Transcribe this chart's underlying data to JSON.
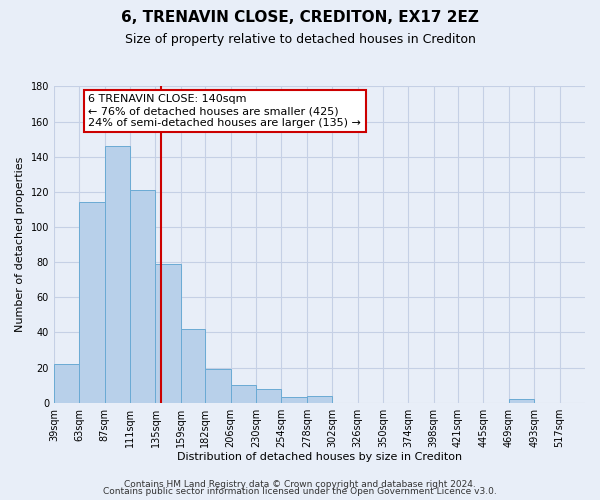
{
  "title": "6, TRENAVIN CLOSE, CREDITON, EX17 2EZ",
  "subtitle": "Size of property relative to detached houses in Crediton",
  "xlabel": "Distribution of detached houses by size in Crediton",
  "ylabel": "Number of detached properties",
  "bar_values": [
    22,
    114,
    146,
    121,
    79,
    42,
    19,
    10,
    8,
    3,
    4,
    0,
    0,
    0,
    0,
    0,
    0,
    0,
    2
  ],
  "bin_edges": [
    39,
    63,
    87,
    111,
    135,
    159,
    182,
    206,
    230,
    254,
    278,
    302,
    326,
    350,
    374,
    398,
    421,
    445,
    469,
    493
  ],
  "bin_labels": [
    "39sqm",
    "63sqm",
    "87sqm",
    "111sqm",
    "135sqm",
    "159sqm",
    "182sqm",
    "206sqm",
    "230sqm",
    "254sqm",
    "278sqm",
    "302sqm",
    "326sqm",
    "350sqm",
    "374sqm",
    "398sqm",
    "421sqm",
    "445sqm",
    "469sqm",
    "493sqm",
    "517sqm"
  ],
  "tick_positions": [
    39,
    63,
    87,
    111,
    135,
    159,
    182,
    206,
    230,
    254,
    278,
    302,
    326,
    350,
    374,
    398,
    421,
    445,
    469,
    493,
    517
  ],
  "bar_color": "#b8d0ea",
  "bar_edge_color": "#6aaad4",
  "vline_x": 140,
  "vline_color": "#cc0000",
  "ylim": [
    0,
    180
  ],
  "yticks": [
    0,
    20,
    40,
    60,
    80,
    100,
    120,
    140,
    160,
    180
  ],
  "xlim_min": 39,
  "xlim_max": 541,
  "annotation_title": "6 TRENAVIN CLOSE: 140sqm",
  "annotation_line1": "← 76% of detached houses are smaller (425)",
  "annotation_line2": "24% of semi-detached houses are larger (135) →",
  "footer_line1": "Contains HM Land Registry data © Crown copyright and database right 2024.",
  "footer_line2": "Contains public sector information licensed under the Open Government Licence v3.0.",
  "background_color": "#e8eef8",
  "plot_bg_color": "#e8eef8",
  "grid_color": "#c5d0e5",
  "title_fontsize": 11,
  "subtitle_fontsize": 9,
  "axis_label_fontsize": 8,
  "tick_fontsize": 7,
  "annotation_fontsize": 8,
  "footer_fontsize": 6.5
}
